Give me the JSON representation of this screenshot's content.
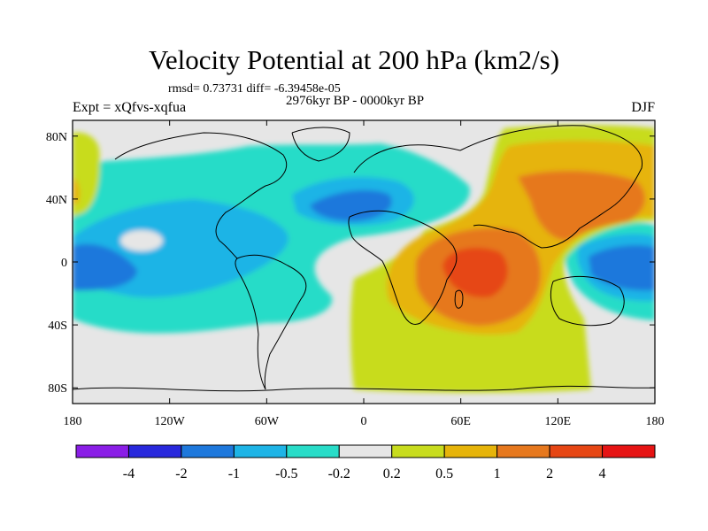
{
  "figure": {
    "title": "Velocity Potential at 200 hPa (km2/s)",
    "stats": "rmsd= 0.73731 diff= -6.39458e-05",
    "experiment": "Expt = xQfvs-xqfua",
    "period": "2976kyr BP - 0000kyr BP",
    "season": "DJF"
  },
  "map": {
    "lon_labels": [
      "180",
      "120W",
      "60W",
      "0",
      "60E",
      "120E",
      "180"
    ],
    "lon_values": [
      -180,
      -120,
      -60,
      0,
      60,
      120,
      180
    ],
    "lat_labels": [
      "80N",
      "40N",
      "0",
      "40S",
      "80S"
    ],
    "lat_values": [
      80,
      40,
      0,
      -40,
      -80
    ]
  },
  "colorbar": {
    "labels": [
      "-4",
      "-2",
      "-1",
      "-0.5",
      "-0.2",
      "0.2",
      "0.5",
      "1",
      "2",
      "4"
    ],
    "colors": [
      "#8a1ee6",
      "#2828dc",
      "#1e78dc",
      "#1eb4e6",
      "#28dcc8",
      "#e6e6e6",
      "#c8dc1e",
      "#e6b40a",
      "#e6781e",
      "#e64614",
      "#e61414"
    ]
  }
}
